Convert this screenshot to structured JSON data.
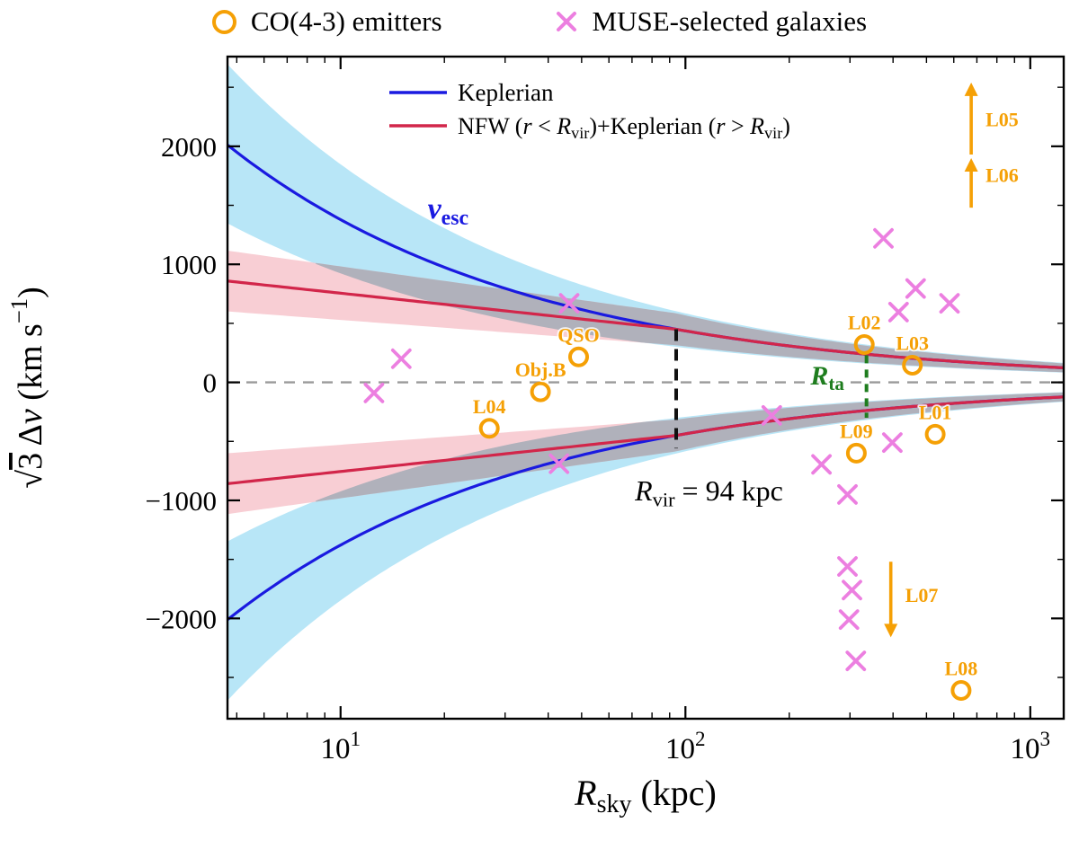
{
  "legend_top": {
    "co": "CO(4-3) emitters",
    "muse": "MUSE-selected galaxies"
  },
  "chart_data": {
    "type": "scatter",
    "x_scale": "log",
    "xlim": [
      4.7,
      1250
    ],
    "ylim": [
      -2850,
      2760
    ],
    "grid": false,
    "xlabel_segments": [
      {
        "t": "R",
        "i": true
      },
      {
        "t": "sky",
        "sub": true
      },
      {
        "t": " (kpc)"
      }
    ],
    "ylabel_segments": [
      {
        "t": "√"
      },
      {
        "t": "3",
        "ol": true
      },
      {
        "t": " Δ"
      },
      {
        "t": "v",
        "i": true
      },
      {
        "t": " (km s"
      },
      {
        "t": "−1",
        "sup": true
      },
      {
        "t": ")"
      }
    ],
    "x_major_ticks": [
      {
        "base": "10",
        "exp": "1",
        "value": 10
      },
      {
        "base": "10",
        "exp": "2",
        "value": 100
      },
      {
        "base": "10",
        "exp": "3",
        "value": 1000
      }
    ],
    "y_ticks": [
      {
        "value": 2000,
        "label": "2000"
      },
      {
        "value": 1000,
        "label": "1000"
      },
      {
        "value": 0,
        "label": "0"
      },
      {
        "value": -1000,
        "label": "−1000"
      },
      {
        "value": -2000,
        "label": "−2000"
      }
    ],
    "curve_legend": [
      {
        "color": "#1A1AE0",
        "name_segments": [
          {
            "t": "Keplerian"
          }
        ]
      },
      {
        "color": "#D2264A",
        "name_segments": [
          {
            "t": "NFW ("
          },
          {
            "t": "r",
            "i": true
          },
          {
            "t": " < "
          },
          {
            "t": "R",
            "i": true
          },
          {
            "t": "vir",
            "sub": true
          },
          {
            "t": ")+Keplerian ("
          },
          {
            "t": "r",
            "i": true
          },
          {
            "t": " > "
          },
          {
            "t": "R",
            "i": true
          },
          {
            "t": "vir",
            "sub": true
          },
          {
            "t": ")"
          }
        ]
      }
    ],
    "models": {
      "keplerian": {
        "v_at_5kpc": 1950,
        "band_lo_factor": 0.67,
        "band_hi_factor": 1.34,
        "color": "#1A1AE0",
        "band_color": "#A6E0F5"
      },
      "nfw": {
        "v_at_5kpc": 850,
        "v_at_rvir": 450,
        "r_vir_kpc": 94,
        "band_lo_factor": 0.7,
        "band_hi_factor": 1.3,
        "color": "#D2264A",
        "band_color": "#F7C6CC"
      },
      "overlap_band_color": "#A8AEB8"
    },
    "series": [
      {
        "name": "CO(4-3) emitters",
        "marker": "circle",
        "color": "#F5A005",
        "points": [
          {
            "label": "QSO",
            "x": 49,
            "v": 215
          },
          {
            "label": "Obj.B",
            "x": 38,
            "v": -80
          },
          {
            "label": "L04",
            "x": 27,
            "v": -390
          },
          {
            "label": "L02",
            "x": 330,
            "v": 320
          },
          {
            "label": "L03",
            "x": 455,
            "v": 145
          },
          {
            "label": "L01",
            "x": 530,
            "v": -440
          },
          {
            "label": "L09",
            "x": 313,
            "v": -600
          },
          {
            "label": "L08",
            "x": 630,
            "v": -2610
          }
        ]
      },
      {
        "name": "MUSE-selected galaxies",
        "marker": "x",
        "color": "#EC7FE0",
        "points": [
          {
            "x": 12.5,
            "v": -90
          },
          {
            "x": 15,
            "v": 200
          },
          {
            "x": 46,
            "v": 670
          },
          {
            "x": 43,
            "v": -690
          },
          {
            "x": 178,
            "v": -280
          },
          {
            "x": 248,
            "v": -695
          },
          {
            "x": 295,
            "v": -950
          },
          {
            "x": 375,
            "v": 1220
          },
          {
            "x": 415,
            "v": 595
          },
          {
            "x": 465,
            "v": 795
          },
          {
            "x": 583,
            "v": 670
          },
          {
            "x": 398,
            "v": -510
          },
          {
            "x": 295,
            "v": -1560
          },
          {
            "x": 304,
            "v": -1760
          },
          {
            "x": 298,
            "v": -2010
          },
          {
            "x": 312,
            "v": -2360
          }
        ]
      }
    ],
    "limits": [
      {
        "label": "L05",
        "x": 674,
        "v_from": 1930,
        "v_to": 2540,
        "dir": "up",
        "label_v": 2230
      },
      {
        "label": "L06",
        "x": 674,
        "v_from": 1480,
        "v_to": 1900,
        "dir": "up",
        "label_v": 1760
      },
      {
        "label": "L07",
        "x": 394,
        "v_from": -1520,
        "v_to": -2160,
        "dir": "down",
        "label_v": -1800
      }
    ],
    "reference_lines": {
      "zero": {
        "v": 0,
        "color": "#9A9A9A"
      },
      "r_vir": {
        "x": 94,
        "v_top": 450,
        "v_bot": -560,
        "color": "#111111",
        "label_segments": [
          {
            "t": "R",
            "i": true
          },
          {
            "t": "vir",
            "sub": true
          },
          {
            "t": " = 94 kpc"
          }
        ],
        "label_x": 117,
        "label_v": -1000
      },
      "r_ta": {
        "x": 335,
        "v_top": 230,
        "v_bot": -300,
        "color": "#1E7D1E",
        "label_segments": [
          {
            "t": "R",
            "i": true
          },
          {
            "t": "ta",
            "sub": true
          }
        ],
        "label_x": 258,
        "label_v": -20
      }
    },
    "annotations": [
      {
        "name": "vesc-label",
        "segments": [
          {
            "t": "v",
            "i": true
          },
          {
            "t": "esc",
            "sub": true
          }
        ],
        "x": 20.5,
        "v": 1390,
        "color": "#1A1AE0",
        "size": 34
      }
    ]
  }
}
